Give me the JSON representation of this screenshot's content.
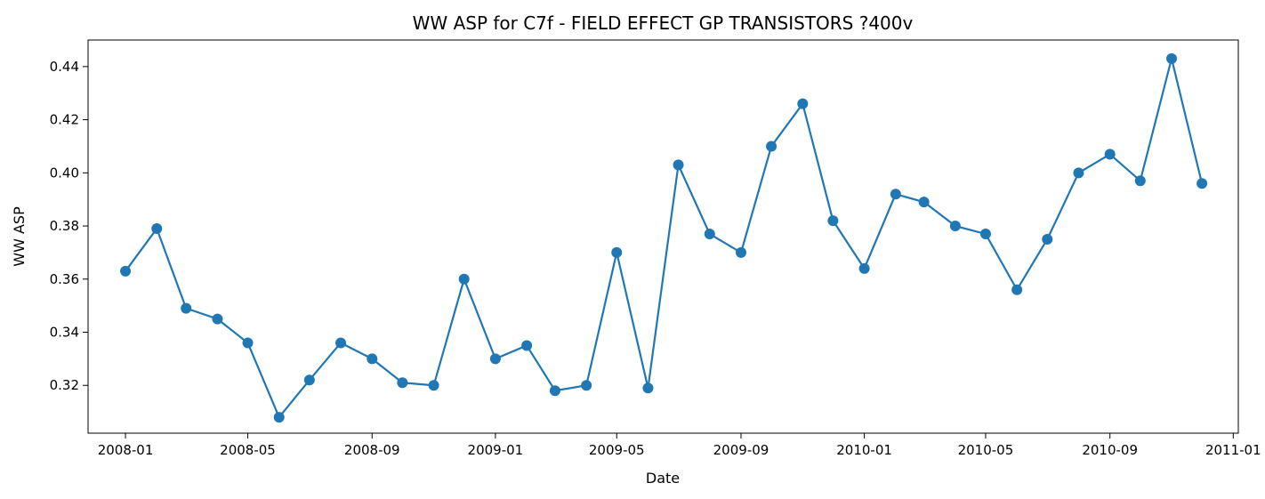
{
  "chart_data": {
    "type": "line",
    "title": "WW ASP for C7f - FIELD EFFECT GP TRANSISTORS ?400v",
    "xlabel": "Date",
    "ylabel": "WW ASP",
    "x_axis_type": "date",
    "xlim": [
      "2007-11-25",
      "2011-01-06"
    ],
    "ylim": [
      0.302,
      0.45
    ],
    "x_ticks": [
      "2008-01-01",
      "2008-05-01",
      "2008-09-01",
      "2009-01-01",
      "2009-05-01",
      "2009-09-01",
      "2010-01-01",
      "2010-05-01",
      "2010-09-01",
      "2011-01-01"
    ],
    "x_tick_labels": [
      "2008-01",
      "2008-05",
      "2008-09",
      "2009-01",
      "2009-05",
      "2009-09",
      "2010-01",
      "2010-05",
      "2010-09",
      "2011-01"
    ],
    "y_ticks": [
      0.32,
      0.34,
      0.36,
      0.38,
      0.4,
      0.42,
      0.44
    ],
    "y_tick_labels": [
      "0.32",
      "0.34",
      "0.36",
      "0.38",
      "0.40",
      "0.42",
      "0.44"
    ],
    "grid": false,
    "legend": "none",
    "series": [
      {
        "color": "#1f77b4",
        "marker": "circle",
        "x": [
          "2008-01-01",
          "2008-02-01",
          "2008-03-01",
          "2008-04-01",
          "2008-05-01",
          "2008-06-01",
          "2008-07-01",
          "2008-08-01",
          "2008-09-01",
          "2008-10-01",
          "2008-11-01",
          "2008-12-01",
          "2009-01-01",
          "2009-02-01",
          "2009-03-01",
          "2009-04-01",
          "2009-05-01",
          "2009-06-01",
          "2009-07-01",
          "2009-08-01",
          "2009-09-01",
          "2009-10-01",
          "2009-11-01",
          "2009-12-01",
          "2010-01-01",
          "2010-02-01",
          "2010-03-01",
          "2010-04-01",
          "2010-05-01",
          "2010-06-01",
          "2010-07-01",
          "2010-08-01",
          "2010-09-01",
          "2010-10-01",
          "2010-11-01",
          "2010-12-01"
        ],
        "values": [
          0.363,
          0.379,
          0.349,
          0.345,
          0.336,
          0.308,
          0.322,
          0.336,
          0.33,
          0.321,
          0.32,
          0.36,
          0.33,
          0.335,
          0.318,
          0.32,
          0.37,
          0.319,
          0.403,
          0.377,
          0.37,
          0.41,
          0.426,
          0.382,
          0.364,
          0.392,
          0.389,
          0.38,
          0.377,
          0.356,
          0.375,
          0.4,
          0.407,
          0.397,
          0.443,
          0.396
        ]
      }
    ]
  }
}
